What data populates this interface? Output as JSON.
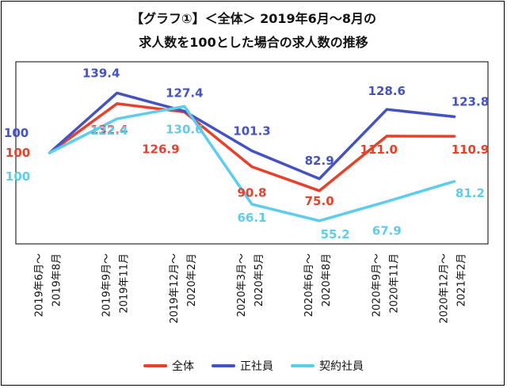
{
  "chart_data": {
    "type": "line",
    "title": "【グラフ①】＜全体＞ 2019年6月～8月の",
    "subtitle": "求人数を100とした場合の求人数の推移",
    "categories": [
      [
        "2019年6月～",
        "2019年8月"
      ],
      [
        "2019年9月～",
        "2019年11月"
      ],
      [
        "2019年12月～",
        "2020年2月"
      ],
      [
        "2020年3月～",
        "2020年5月"
      ],
      [
        "2020年6月～",
        "2020年8月"
      ],
      [
        "2020年9月～",
        "2020年11月"
      ],
      [
        "2020年12月～",
        "2021年2月"
      ]
    ],
    "series": [
      {
        "name": "全体",
        "color": "#e8402a",
        "values": [
          100,
          132.4,
          126.9,
          90.8,
          75.0,
          111.0,
          110.9
        ],
        "labels": [
          "100",
          "132.4",
          "126.9",
          "90.8",
          "75.0",
          "111.0",
          "110.9"
        ]
      },
      {
        "name": "正社員",
        "color": "#4452c4",
        "values": [
          100,
          139.4,
          127.4,
          101.3,
          82.9,
          128.6,
          123.8
        ],
        "labels": [
          "100",
          "139.4",
          "127.4",
          "101.3",
          "82.9",
          "128.6",
          "123.8"
        ]
      },
      {
        "name": "契約社員",
        "color": "#5ccdee",
        "values": [
          100,
          122.4,
          130.6,
          66.1,
          55.2,
          67.9,
          81.2
        ],
        "labels": [
          "100",
          "122.4",
          "130.6",
          "66.1",
          "55.2",
          "67.9",
          "81.2"
        ]
      }
    ],
    "ylim": [
      40,
      160
    ],
    "grid": false,
    "legend_position": "bottom"
  }
}
